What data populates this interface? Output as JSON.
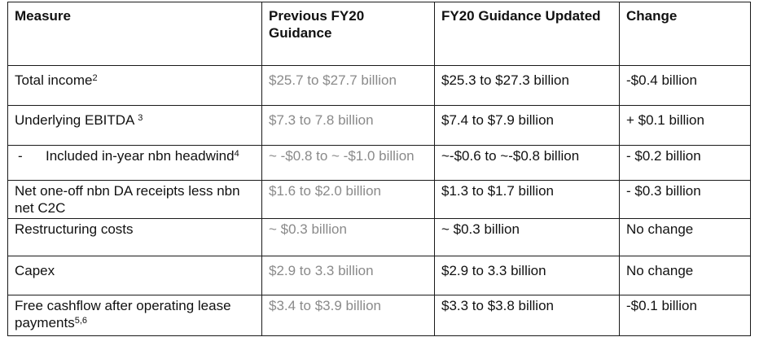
{
  "headers": {
    "measure": "Measure",
    "previous": "Previous FY20 Guidance",
    "updated": "FY20 Guidance Updated",
    "change": "Change"
  },
  "rows": [
    {
      "measure": "Total income",
      "sup": "2",
      "previous": "$25.7 to $27.7 billion",
      "updated": "$25.3 to $27.3 billion",
      "change": "-$0.4 billion"
    },
    {
      "measure": "Underlying EBITDA ",
      "sup": "3",
      "previous": "$7.3 to 7.8 billion",
      "updated": "$7.4 to $7.9 billion",
      "change": "+ $0.1 billion"
    },
    {
      "dash": "-",
      "measure": "Included in-year nbn headwind",
      "sup": "4",
      "previous": "~ -$0.8 to ~ -$1.0 billion",
      "updated": "~-$0.6 to ~-$0.8 billion",
      "change": "- $0.2 billion"
    },
    {
      "measure": "Net one-off nbn DA receipts less nbn net C2C",
      "previous": "$1.6 to $2.0 billion",
      "updated": "$1.3 to $1.7 billion",
      "change": "- $0.3 billion"
    },
    {
      "measure": "Restructuring costs",
      "previous": "~ $0.3 billion",
      "updated": "~ $0.3 billion",
      "change": "No change"
    },
    {
      "measure": "Capex",
      "previous": "$2.9 to 3.3 billion",
      "updated": "$2.9 to 3.3 billion",
      "change": "No change"
    },
    {
      "measure": "Free cashflow after operating lease payments",
      "sup": "5,6",
      "previous": "$3.4 to $3.9 billion",
      "updated": "$3.3 to $3.8 billion",
      "change": "-$0.1 billion"
    }
  ]
}
